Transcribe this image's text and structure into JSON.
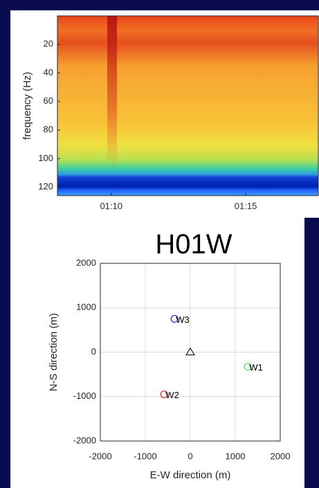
{
  "chart_data": [
    {
      "type": "spectrogram",
      "ylabel": "frequency (Hz)",
      "xlim": [
        68,
        77.7
      ],
      "xticks": [
        {
          "value": 70,
          "label": "01:10"
        },
        {
          "value": 75,
          "label": "01:15"
        }
      ],
      "ylim": [
        0,
        126
      ],
      "yticks": [
        20,
        40,
        60,
        80,
        100,
        120
      ],
      "yreverse": true
    },
    {
      "type": "scatter",
      "title": "H01W",
      "xlabel": "E-W direction (m)",
      "ylabel": "N-S direction (m)",
      "xlim": [
        -2000,
        2000
      ],
      "xticks": [
        -2000,
        -1000,
        0,
        1000,
        2000
      ],
      "ylim": [
        -2000,
        2000
      ],
      "yticks": [
        -2000,
        -1000,
        0,
        1000,
        2000
      ],
      "grid": true,
      "series": [
        {
          "name": "W1",
          "color": "#55e055",
          "marker": "circle",
          "x": [
            1280
          ],
          "values": [
            -330
          ]
        },
        {
          "name": "W2",
          "color": "#e02020",
          "marker": "circle",
          "x": [
            -580
          ],
          "values": [
            -950
          ]
        },
        {
          "name": "W3",
          "color": "#2020d0",
          "marker": "circle",
          "x": [
            -350
          ],
          "values": [
            750
          ]
        },
        {
          "color": "#000000",
          "marker": "triangle",
          "x": [
            0
          ],
          "values": [
            0
          ]
        }
      ]
    }
  ]
}
